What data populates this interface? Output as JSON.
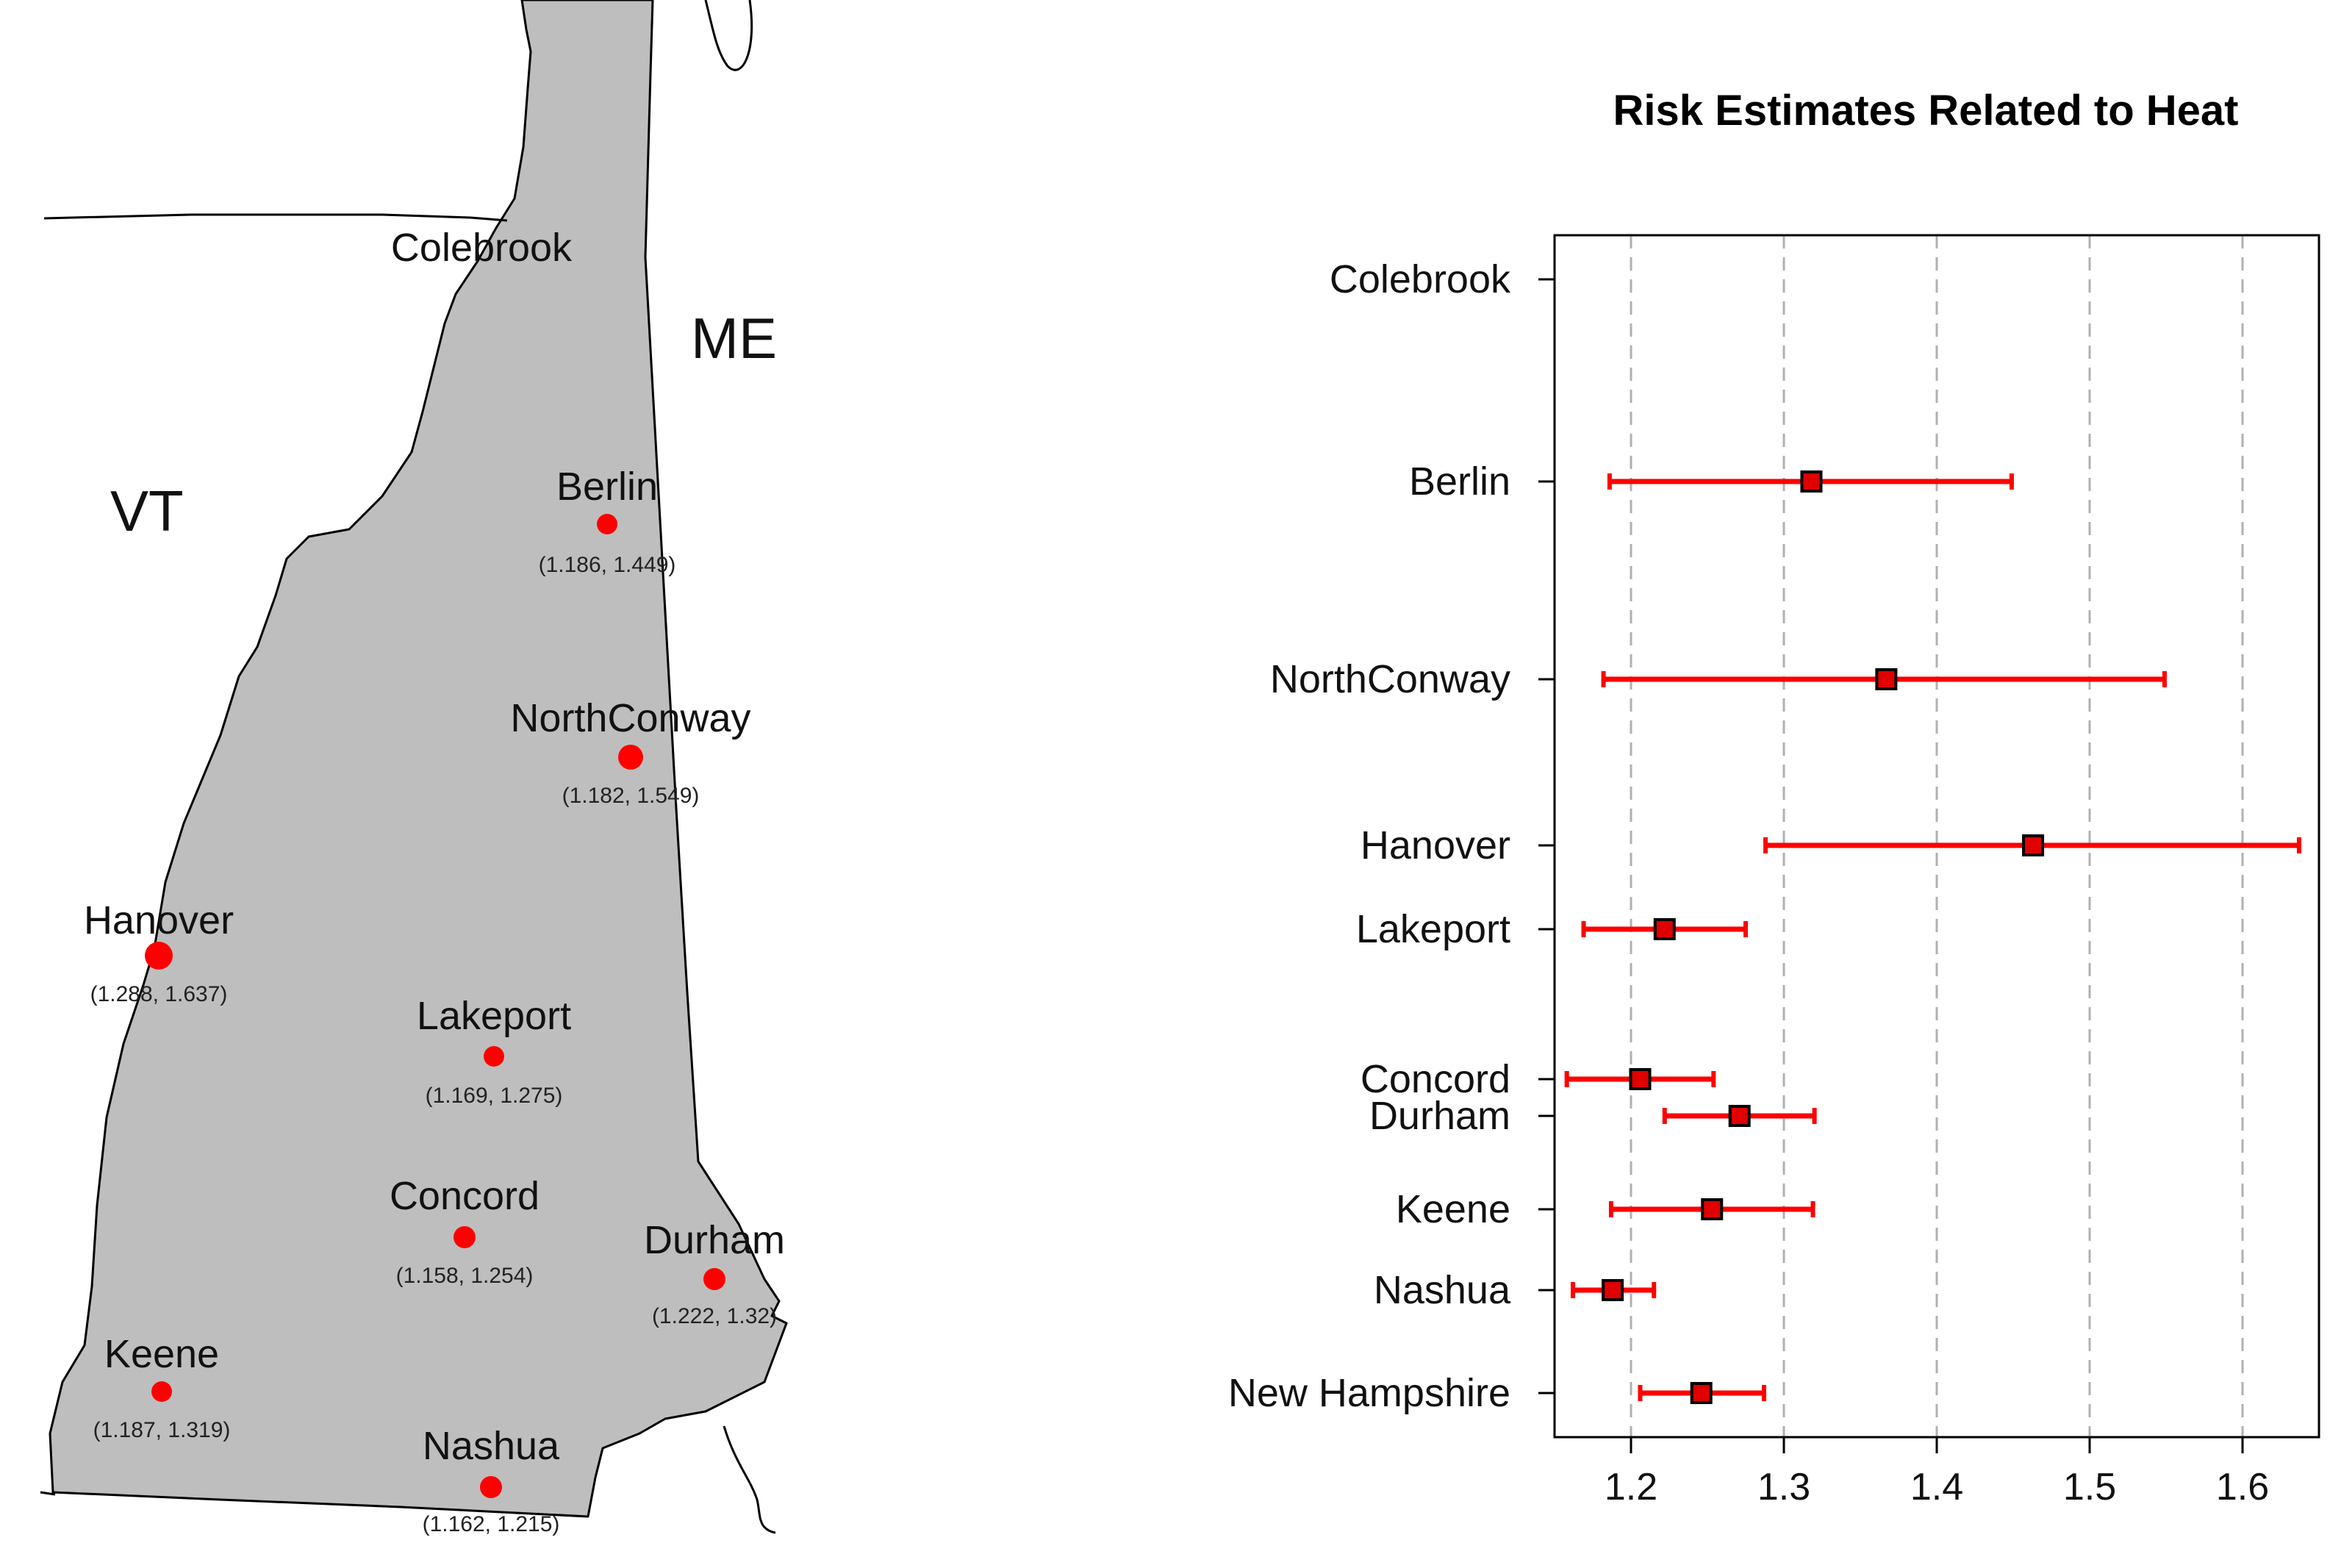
{
  "map": {
    "state_labels": [
      "VT",
      "ME"
    ],
    "sites": [
      {
        "name": "Colebrook",
        "ci": ""
      },
      {
        "name": "Berlin",
        "ci": "(1.186, 1.449)"
      },
      {
        "name": "NorthConway",
        "ci": "(1.182, 1.549)"
      },
      {
        "name": "Hanover",
        "ci": "(1.288, 1.637)"
      },
      {
        "name": "Lakeport",
        "ci": "(1.169, 1.275)"
      },
      {
        "name": "Concord",
        "ci": "(1.158, 1.254)"
      },
      {
        "name": "Durham",
        "ci": "(1.222, 1.32)"
      },
      {
        "name": "Keene",
        "ci": "(1.187, 1.319)"
      },
      {
        "name": "Nashua",
        "ci": "(1.162, 1.215)"
      }
    ],
    "colors": {
      "fill": "#bebebe",
      "outline": "#000000",
      "point": "#ff0000"
    }
  },
  "chart_data": {
    "type": "forest",
    "title": "Risk Estimates Related to Heat",
    "xlabel": "",
    "ylabel": "",
    "xlim": [
      1.15,
      1.65
    ],
    "xticks": [
      1.2,
      1.3,
      1.4,
      1.5,
      1.6
    ],
    "grid": "vertical dashed",
    "rows": [
      {
        "label": "Colebrook",
        "estimate": null,
        "lower": null,
        "upper": null
      },
      {
        "label": "Berlin",
        "estimate": 1.318,
        "lower": 1.186,
        "upper": 1.449
      },
      {
        "label": "NorthConway",
        "estimate": 1.367,
        "lower": 1.182,
        "upper": 1.549
      },
      {
        "label": "Hanover",
        "estimate": 1.463,
        "lower": 1.288,
        "upper": 1.637
      },
      {
        "label": "Lakeport",
        "estimate": 1.222,
        "lower": 1.169,
        "upper": 1.275
      },
      {
        "label": "Concord",
        "estimate": 1.206,
        "lower": 1.158,
        "upper": 1.254
      },
      {
        "label": "Durham",
        "estimate": 1.271,
        "lower": 1.222,
        "upper": 1.32
      },
      {
        "label": "Keene",
        "estimate": 1.253,
        "lower": 1.187,
        "upper": 1.319
      },
      {
        "label": "Nashua",
        "estimate": 1.188,
        "lower": 1.162,
        "upper": 1.215
      },
      {
        "label": "New Hampshire",
        "estimate": 1.246,
        "lower": 1.206,
        "upper": 1.287
      }
    ],
    "colors": {
      "interval": "#ff0000",
      "marker": "#e00000",
      "grid": "#b0b0b0"
    }
  }
}
